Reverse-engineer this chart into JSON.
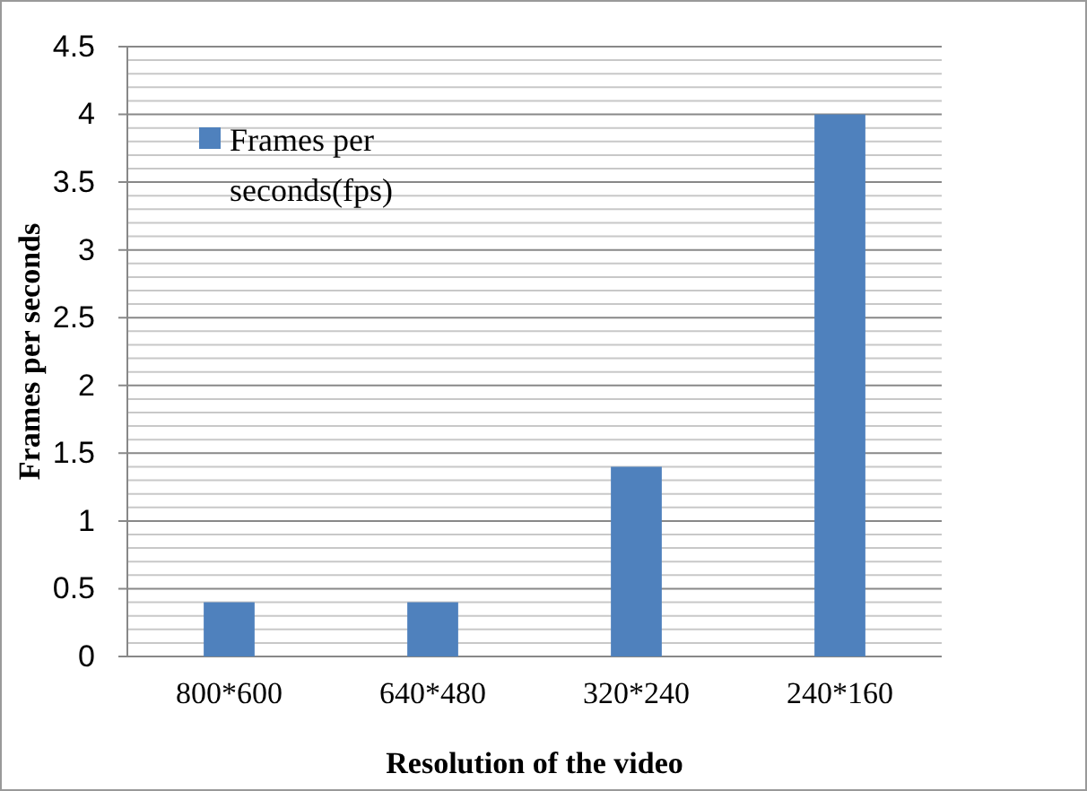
{
  "chart_data": {
    "type": "bar",
    "xlabel": "Resolution of the video",
    "ylabel": "Frames per seconds",
    "categories": [
      "800*600",
      "640*480",
      "320*240",
      "240*160"
    ],
    "series": [
      {
        "name": "Frames per seconds(fps)",
        "color": "#4f81bd",
        "values": [
          0.4,
          0.4,
          1.4,
          4
        ]
      }
    ],
    "ylim": [
      0,
      4.5
    ],
    "yticks": [
      0,
      0.5,
      1,
      1.5,
      2,
      2.5,
      3,
      3.5,
      4,
      4.5
    ],
    "grid": "y",
    "legend": "top left"
  }
}
